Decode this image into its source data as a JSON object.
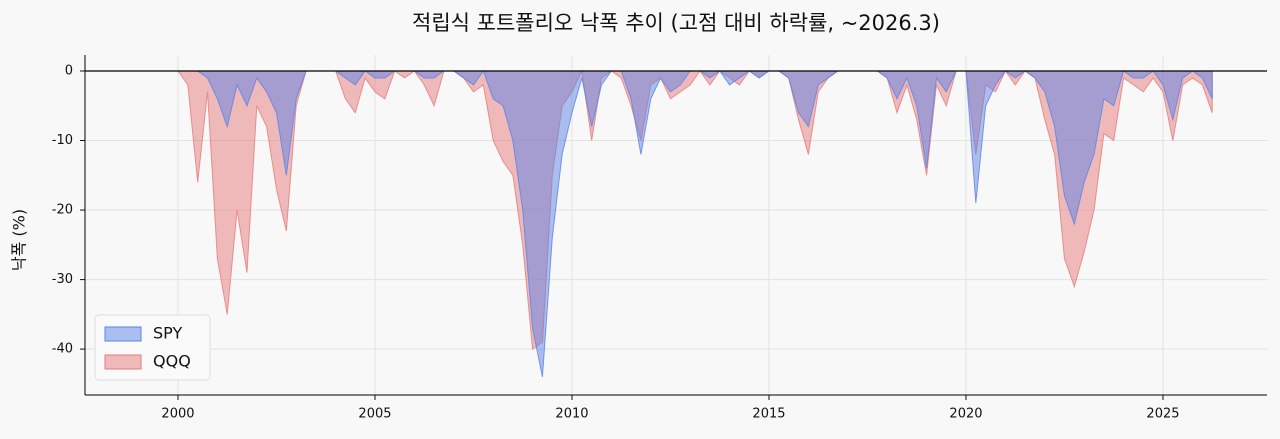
{
  "chart_data": {
    "type": "area",
    "title": "적립식 포트폴리오 낙폭 추이 (고점 대비 하락률, ~2026.3)",
    "y_label": "낙폭 (%)",
    "x": [
      1999.0,
      1999.25,
      1999.5,
      1999.75,
      2000.0,
      2000.25,
      2000.5,
      2000.75,
      2001.0,
      2001.25,
      2001.5,
      2001.75,
      2002.0,
      2002.25,
      2002.5,
      2002.75,
      2003.0,
      2003.25,
      2003.5,
      2003.75,
      2004.0,
      2004.25,
      2004.5,
      2004.75,
      2005.0,
      2005.25,
      2005.5,
      2005.75,
      2006.0,
      2006.25,
      2006.5,
      2006.75,
      2007.0,
      2007.25,
      2007.5,
      2007.75,
      2008.0,
      2008.25,
      2008.5,
      2008.75,
      2009.0,
      2009.25,
      2009.5,
      2009.75,
      2010.0,
      2010.25,
      2010.5,
      2010.75,
      2011.0,
      2011.25,
      2011.5,
      2011.75,
      2012.0,
      2012.25,
      2012.5,
      2012.75,
      2013.0,
      2013.25,
      2013.5,
      2013.75,
      2014.0,
      2014.25,
      2014.5,
      2014.75,
      2015.0,
      2015.25,
      2015.5,
      2015.75,
      2016.0,
      2016.25,
      2016.5,
      2016.75,
      2017.0,
      2017.25,
      2017.5,
      2017.75,
      2018.0,
      2018.25,
      2018.5,
      2018.75,
      2019.0,
      2019.25,
      2019.5,
      2019.75,
      2020.0,
      2020.25,
      2020.5,
      2020.75,
      2021.0,
      2021.25,
      2021.5,
      2021.75,
      2022.0,
      2022.25,
      2022.5,
      2022.75,
      2023.0,
      2023.25,
      2023.5,
      2023.75,
      2024.0,
      2024.25,
      2024.5,
      2024.75,
      2025.0,
      2025.25,
      2025.5,
      2025.75,
      2026.0,
      2026.25
    ],
    "series": [
      {
        "name": "SPY",
        "color": "#5b82e6",
        "values": [
          0,
          0,
          0,
          0,
          0,
          0,
          0,
          -1,
          -4,
          -8,
          -2,
          -5,
          -1,
          -3,
          -6,
          -15,
          -4,
          0,
          0,
          0,
          0,
          -1,
          -2,
          0,
          -1,
          -1,
          0,
          0,
          0,
          -1,
          -1,
          0,
          0,
          -1,
          -2,
          0,
          -4,
          -5,
          -10,
          -20,
          -37,
          -44,
          -24,
          -12,
          -6,
          -1,
          -8,
          -2,
          0,
          0,
          -4,
          -12,
          -4,
          -1,
          -3,
          -2,
          0,
          0,
          -1,
          0,
          -2,
          -1,
          0,
          -1,
          0,
          0,
          -1,
          -6,
          -8,
          -2,
          -1,
          0,
          0,
          0,
          0,
          0,
          -1,
          -4,
          -1,
          -5,
          -14,
          -1,
          -3,
          0,
          0,
          -19,
          -5,
          -2,
          0,
          -1,
          0,
          -1,
          -3,
          -8,
          -18,
          -22,
          -16,
          -12,
          -4,
          -5,
          0,
          -1,
          -1,
          0,
          -2,
          -7,
          -1,
          0,
          -1,
          -4
        ]
      },
      {
        "name": "QQQ",
        "color": "#e57a7a",
        "values": [
          0,
          0,
          0,
          0,
          0,
          -2,
          -16,
          -3,
          -27,
          -35,
          -20,
          -29,
          -5,
          -8,
          -17,
          -23,
          -5,
          0,
          0,
          0,
          0,
          -4,
          -6,
          -1,
          -3,
          -4,
          0,
          -1,
          0,
          -2,
          -5,
          0,
          0,
          -1,
          -3,
          -2,
          -10,
          -13,
          -15,
          -25,
          -40,
          -39,
          -15,
          -5,
          -3,
          0,
          -10,
          -1,
          0,
          -1,
          -5,
          -10,
          -2,
          -1,
          -4,
          -3,
          -2,
          0,
          -2,
          0,
          -1,
          -2,
          0,
          -1,
          0,
          0,
          -1,
          -7,
          -12,
          -3,
          -1,
          0,
          0,
          0,
          0,
          0,
          -1,
          -6,
          -2,
          -7,
          -15,
          -2,
          -5,
          0,
          0,
          -12,
          -2,
          -3,
          0,
          -2,
          0,
          -1,
          -7,
          -12,
          -27,
          -31,
          -26,
          -20,
          -9,
          -10,
          -1,
          -2,
          -3,
          -1,
          -3,
          -10,
          -2,
          -1,
          -2,
          -6
        ]
      }
    ],
    "xlim": [
      1997.64,
      2027.64
    ],
    "xticks": [
      2000,
      2005,
      2010,
      2015,
      2020,
      2025
    ],
    "ylim": [
      -46.6,
      2.3
    ],
    "yticks": [
      0,
      -10,
      -20,
      -30,
      -40
    ],
    "grid": true,
    "legend": "lower left"
  }
}
